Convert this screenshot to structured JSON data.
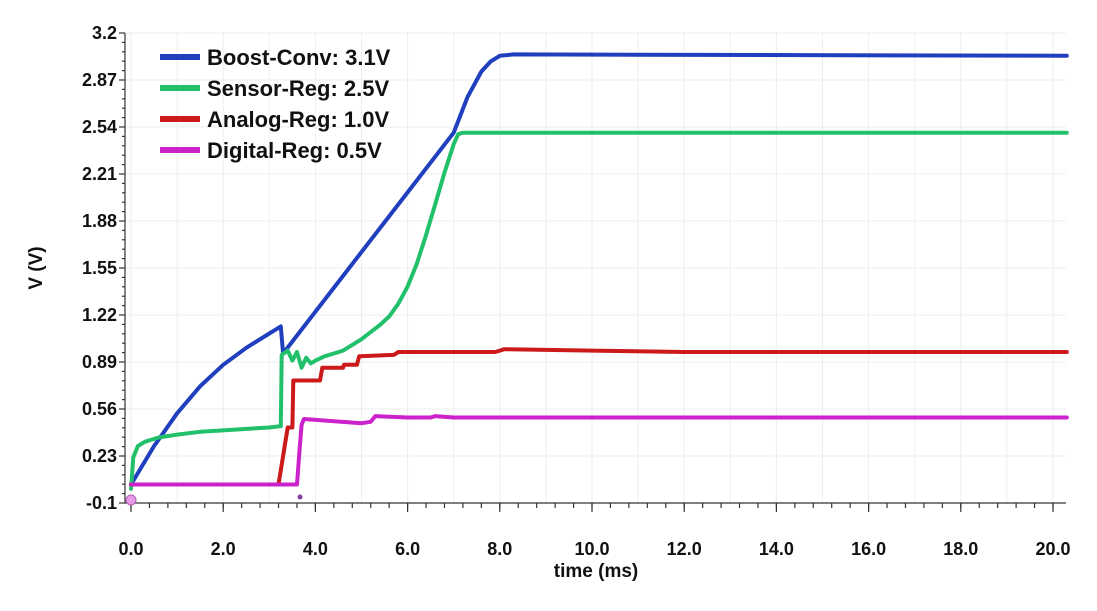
{
  "chart_data": {
    "type": "line",
    "title": "",
    "xlabel": "time (ms)",
    "ylabel": "V (V)",
    "xlim": [
      0,
      20.3
    ],
    "ylim": [
      -0.1,
      3.2
    ],
    "x_ticks": [
      "0.0",
      "2.0",
      "4.0",
      "6.0",
      "8.0",
      "10.0",
      "12.0",
      "14.0",
      "16.0",
      "18.0",
      "20.0"
    ],
    "y_ticks": [
      "-0.1",
      "0.23",
      "0.56",
      "0.89",
      "1.22",
      "1.55",
      "1.88",
      "2.21",
      "2.54",
      "2.87",
      "3.2"
    ],
    "grid": true,
    "legend_position": "top-left",
    "series": [
      {
        "name": "Boost-Conv: 3.1V",
        "color": "#1f3fbf",
        "x": [
          0.0,
          0.5,
          1.0,
          1.5,
          2.0,
          2.5,
          3.0,
          3.25,
          3.3,
          7.0,
          7.3,
          7.6,
          7.8,
          8.0,
          8.3,
          20.3
        ],
        "y": [
          0.03,
          0.3,
          0.53,
          0.72,
          0.87,
          0.99,
          1.09,
          1.14,
          0.95,
          2.5,
          2.75,
          2.93,
          3.0,
          3.04,
          3.05,
          3.04
        ]
      },
      {
        "name": "Sensor-Reg: 2.5V",
        "color": "#22c06a",
        "x": [
          0.0,
          0.05,
          0.15,
          0.3,
          0.6,
          1.0,
          1.5,
          2.0,
          2.5,
          3.0,
          3.25,
          3.27,
          3.4,
          3.5,
          3.6,
          3.7,
          3.8,
          3.9,
          4.0,
          4.2,
          4.4,
          4.6,
          4.8,
          5.0,
          5.2,
          5.4,
          5.6,
          5.8,
          6.0,
          6.2,
          6.4,
          6.6,
          6.8,
          7.0,
          7.1,
          7.2,
          20.3
        ],
        "y": [
          0.0,
          0.22,
          0.3,
          0.33,
          0.36,
          0.38,
          0.4,
          0.41,
          0.42,
          0.43,
          0.44,
          0.94,
          0.97,
          0.9,
          0.96,
          0.85,
          0.92,
          0.88,
          0.9,
          0.93,
          0.95,
          0.97,
          1.01,
          1.05,
          1.1,
          1.15,
          1.21,
          1.3,
          1.42,
          1.58,
          1.78,
          2.0,
          2.22,
          2.42,
          2.49,
          2.5,
          2.5
        ]
      },
      {
        "name": "Analog-Reg: 1.0V",
        "color": "#cc1a1a",
        "x": [
          0.0,
          3.2,
          3.4,
          3.5,
          3.52,
          4.1,
          4.15,
          4.6,
          4.62,
          4.9,
          4.95,
          5.7,
          5.8,
          7.9,
          8.1,
          10.0,
          12.0,
          15.0,
          20.3
        ],
        "y": [
          0.03,
          0.03,
          0.43,
          0.43,
          0.76,
          0.76,
          0.85,
          0.85,
          0.87,
          0.87,
          0.93,
          0.94,
          0.96,
          0.96,
          0.98,
          0.97,
          0.96,
          0.96,
          0.96
        ]
      },
      {
        "name": "Digital-Reg: 0.5V",
        "color": "#cc22cc",
        "x": [
          0.0,
          3.6,
          3.65,
          3.7,
          3.75,
          5.0,
          5.2,
          5.3,
          6.0,
          6.5,
          6.6,
          7.0,
          8.0,
          10.0,
          20.3
        ],
        "y": [
          0.03,
          0.03,
          0.25,
          0.45,
          0.49,
          0.46,
          0.47,
          0.51,
          0.5,
          0.5,
          0.51,
          0.5,
          0.5,
          0.5,
          0.5
        ]
      }
    ]
  }
}
